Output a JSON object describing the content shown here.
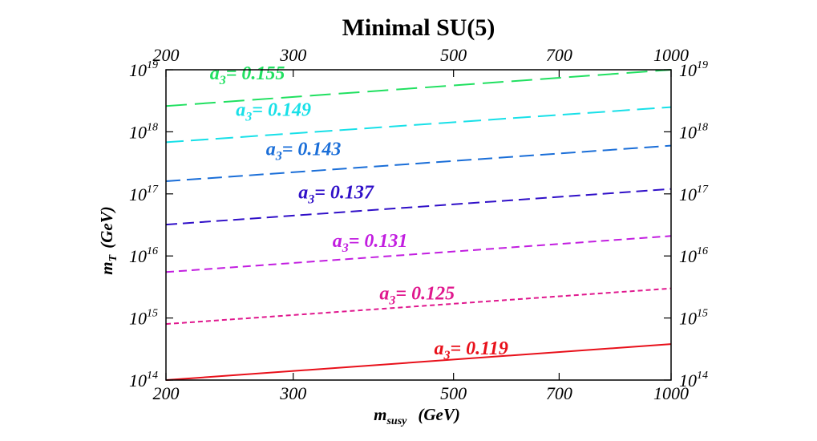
{
  "chart_data": {
    "type": "line",
    "title": "Minimal  SU(5)",
    "xlabel": {
      "main": "m",
      "sub": "susy",
      "unit": "(GeV)"
    },
    "ylabel": {
      "main": "m",
      "sub": "T",
      "unit": "(GeV)"
    },
    "xscale": "log",
    "yscale": "log",
    "xlim": [
      200,
      1000
    ],
    "ylim": [
      100000000000000.0,
      1e+19
    ],
    "x_ticks": [
      200,
      300,
      500,
      700,
      1000
    ],
    "x_tick_labels": [
      "200",
      "300",
      "500",
      "700",
      "1000"
    ],
    "y_ticks": [
      100000000000000.0,
      1000000000000000.0,
      1e+16,
      1e+17,
      1e+18,
      1e+19
    ],
    "y_tick_labels": [
      {
        "base": "10",
        "exp": "14"
      },
      {
        "base": "10",
        "exp": "15"
      },
      {
        "base": "10",
        "exp": "16"
      },
      {
        "base": "10",
        "exp": "17"
      },
      {
        "base": "10",
        "exp": "18"
      },
      {
        "base": "10",
        "exp": "19"
      }
    ],
    "grid": false,
    "legend": "none",
    "series": [
      {
        "label_main": "a",
        "label_sub": "3",
        "label_value": "= 0.119",
        "color": "#e8101a",
        "dash": "",
        "x": [
          200,
          1000
        ],
        "y": [
          100000000000000.0,
          380000000000000.0
        ],
        "label_at": [
          470,
          260000000000000.0
        ]
      },
      {
        "label_main": "a",
        "label_sub": "3",
        "label_value": "= 0.125",
        "color": "#e0188e",
        "dash": "6,4",
        "x": [
          200,
          1000
        ],
        "y": [
          800000000000000.0,
          3000000000000000.0
        ],
        "label_at": [
          395,
          2000000000000000.0
        ]
      },
      {
        "label_main": "a",
        "label_sub": "3",
        "label_value": "= 0.131",
        "color": "#c21ee0",
        "dash": "10,6",
        "x": [
          200,
          1000
        ],
        "y": [
          5500000000000000.0,
          2.1e+16
        ],
        "label_at": [
          340,
          1.4e+16
        ]
      },
      {
        "label_main": "a",
        "label_sub": "3",
        "label_value": "= 0.137",
        "color": "#3010c8",
        "dash": "14,7",
        "x": [
          200,
          1000
        ],
        "y": [
          3.2e+16,
          1.2e+17
        ],
        "label_at": [
          305,
          8.5e+16
        ]
      },
      {
        "label_main": "a",
        "label_sub": "3",
        "label_value": "= 0.143",
        "color": "#1a6ed8",
        "dash": "18,8",
        "x": [
          200,
          1000
        ],
        "y": [
          1.6e+17,
          6e+17
        ],
        "label_at": [
          275,
          4.2e+17
        ]
      },
      {
        "label_main": "a",
        "label_sub": "3",
        "label_value": "= 0.149",
        "color": "#18e0e8",
        "dash": "22,9",
        "x": [
          200,
          1000
        ],
        "y": [
          6.8e+17,
          2.5e+18
        ],
        "label_at": [
          250,
          1.8e+18
        ]
      },
      {
        "label_main": "a",
        "label_sub": "3",
        "label_value": "= 0.155",
        "color": "#20e060",
        "dash": "26,10",
        "x": [
          200,
          1000
        ],
        "y": [
          2.6e+18,
          1e+19
        ],
        "label_at": [
          230,
          7e+18
        ]
      }
    ]
  }
}
